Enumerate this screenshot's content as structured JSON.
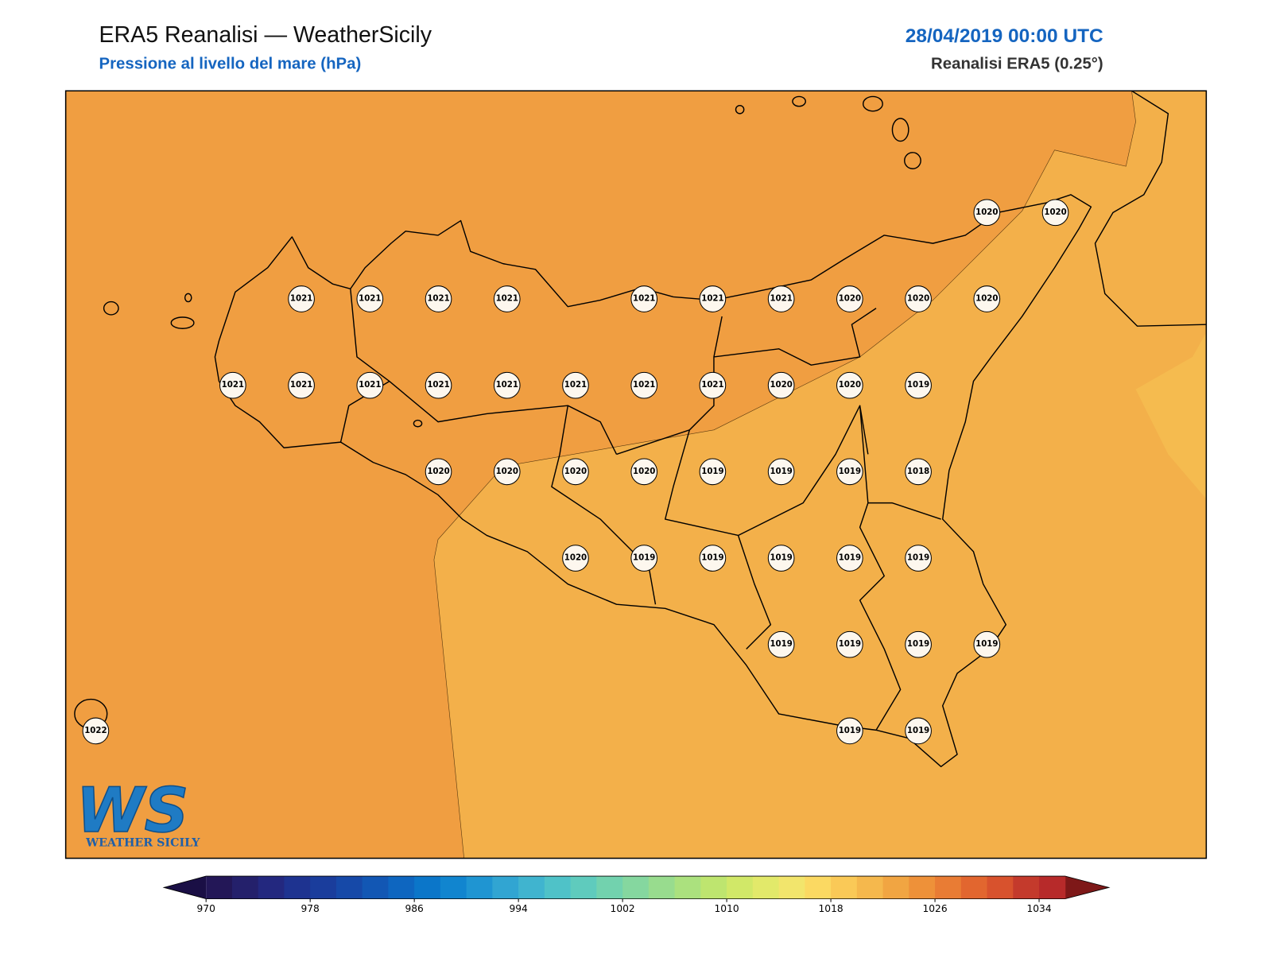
{
  "header": {
    "title": "ERA5 Reanalisi — WeatherSicily",
    "subtitle": "Pressione al livello del mare (hPa)",
    "date": "28/04/2019 00:00 UTC",
    "source": "Reanalisi ERA5 (0.25°)"
  },
  "map": {
    "grid": [
      [
        null,
        null,
        null,
        null,
        null,
        null,
        null,
        null,
        null,
        null,
        null,
        null,
        null,
        1020,
        1020
      ],
      [
        null,
        null,
        null,
        1021,
        1021,
        1021,
        1021,
        null,
        1021,
        1021,
        1021,
        1020,
        1020,
        1020,
        null
      ],
      [
        null,
        null,
        1021,
        1021,
        1021,
        1021,
        1021,
        1021,
        1021,
        1021,
        1020,
        1020,
        1019,
        null,
        null
      ],
      [
        null,
        null,
        null,
        null,
        null,
        1020,
        1020,
        1020,
        1020,
        1019,
        1019,
        1019,
        1018,
        null,
        null
      ],
      [
        null,
        null,
        null,
        null,
        null,
        null,
        null,
        1020,
        1019,
        1019,
        1019,
        1019,
        1019,
        null,
        null
      ],
      [
        null,
        null,
        null,
        null,
        null,
        null,
        null,
        null,
        null,
        null,
        1019,
        1019,
        1019,
        1019,
        null
      ],
      [
        1022,
        null,
        null,
        null,
        null,
        null,
        null,
        null,
        null,
        null,
        null,
        1019,
        1019,
        null,
        null
      ]
    ]
  },
  "colorbar": {
    "range": [
      970,
      1036
    ],
    "ticks": [
      970,
      978,
      986,
      994,
      1002,
      1010,
      1018,
      1026,
      1034
    ],
    "colors": [
      "#231757",
      "#24206b",
      "#23287f",
      "#1e3390",
      "#1a3d9c",
      "#1649a8",
      "#1257b4",
      "#0e66c0",
      "#0b76c9",
      "#1185cf",
      "#1f95d2",
      "#31a5d2",
      "#40b4cf",
      "#4fc2c8",
      "#5fcbbd",
      "#72d2ae",
      "#85d79f",
      "#98dc8e",
      "#abe17e",
      "#bee56f",
      "#d1e868",
      "#e2e96a",
      "#f2e56c",
      "#fbd962",
      "#fac957",
      "#f5b84d",
      "#f1a542",
      "#ee9139",
      "#e97c34",
      "#e2662f",
      "#d8522d",
      "#c43a2c",
      "#b72a2a"
    ],
    "under_color": "#1a0f45",
    "over_color": "#7e1818"
  },
  "logo": {
    "mark": "WS",
    "name": "WEATHER SICILY"
  }
}
